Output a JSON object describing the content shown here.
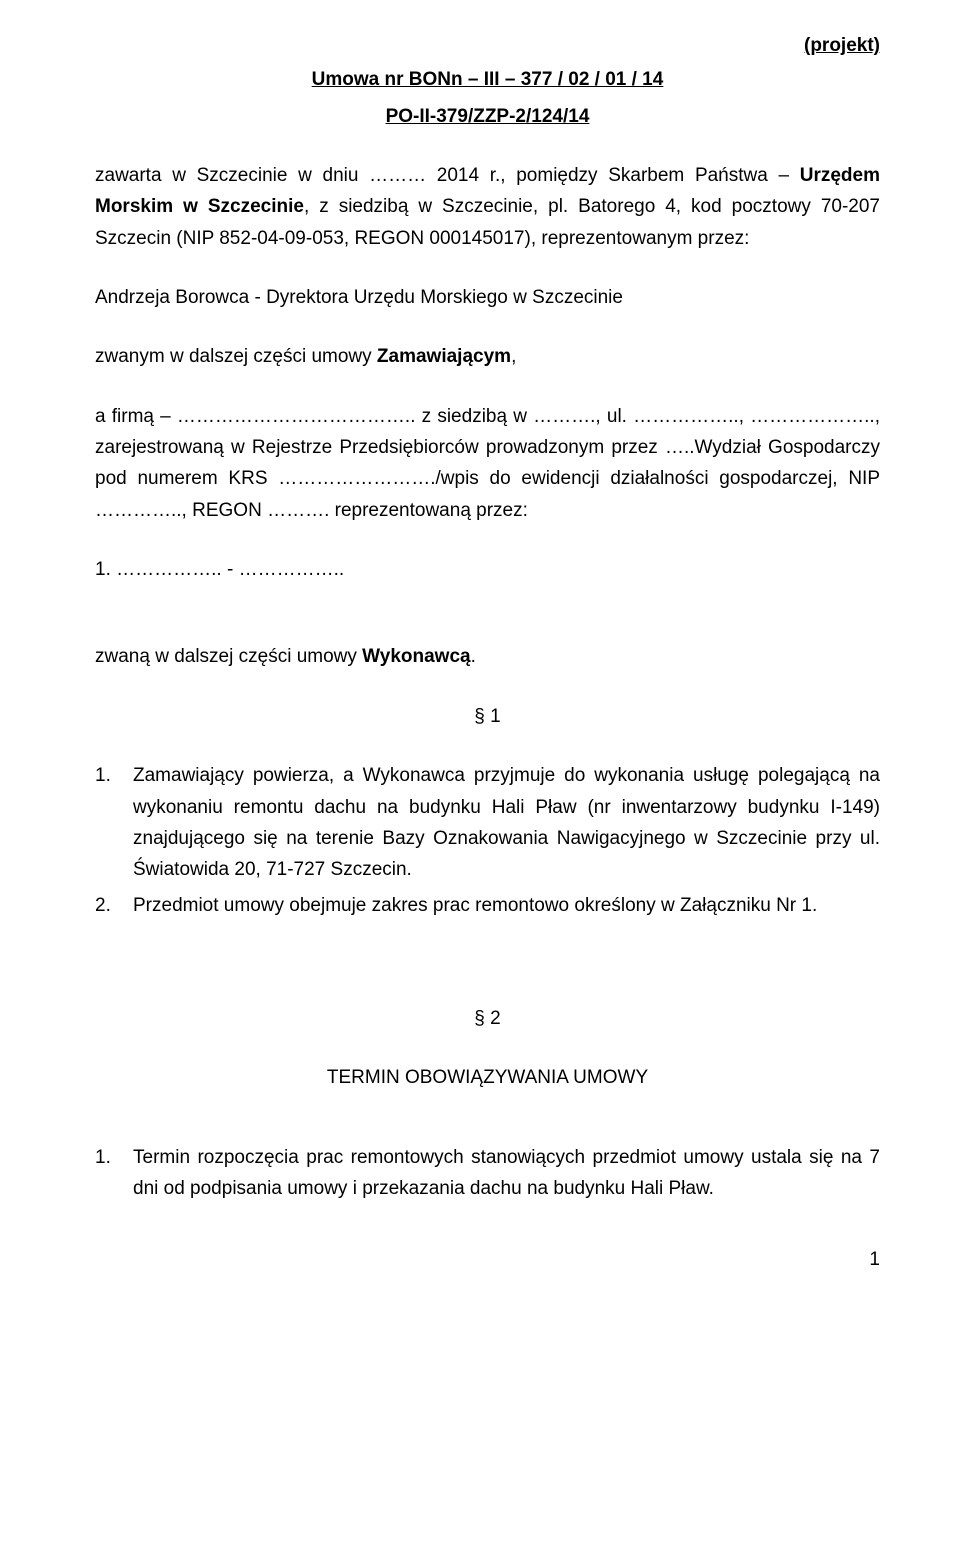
{
  "draft": "(projekt)",
  "title1": "Umowa  nr   BONn – III – 377 / 02 / 01 / 14",
  "title2": "PO-II-379/ZZP-2/124/14",
  "p1_part1": "zawarta w Szczecinie w dniu ……… 2014 r., pomiędzy Skarbem Państwa – ",
  "p1_bold1": "Urzędem Morskim w Szczecinie",
  "p1_part2": ", z siedzibą w Szczecinie, pl. Batorego 4, kod pocztowy 70-207 Szczecin   (NIP 852-04-09-053, REGON 000145017), reprezentowanym przez:",
  "p2": "Andrzeja Borowca - Dyrektora Urzędu Morskiego w Szczecinie",
  "p3_part1": "zwanym w dalszej części umowy ",
  "p3_bold": "Zamawiającym",
  "p3_part2": ",",
  "p4": "a firmą – ……………………………….. z siedzibą w ………., ul. …………….., ……………….., zarejestrowaną w Rejestrze Przedsiębiorców prowadzonym przez …..Wydział Gospodarczy pod numerem KRS ……………………./wpis do ewidencji działalności gospodarczej, NIP ………….., REGON ……….   reprezentowaną przez:",
  "p5": "1.     …………….. - ……………..",
  "p6_part1": "zwaną w dalszej części umowy ",
  "p6_bold": "Wykonawcą",
  "p6_part2": ".",
  "section1": "§ 1",
  "s1_item1_num": "1.",
  "s1_item1": "Zamawiający powierza, a Wykonawca przyjmuje do wykonania usługę polegającą na wykonaniu remontu dachu na budynku Hali Pław (nr inwentarzowy budynku I-149) znajdującego się na terenie Bazy Oznakowania Nawigacyjnego w Szczecinie przy ul. Światowida 20, 71-727 Szczecin.",
  "s1_item2_num": "2.",
  "s1_item2": "Przedmiot umowy obejmuje zakres prac remontowo określony w Załączniku Nr 1.",
  "section2": "§ 2",
  "section2_title": "TERMIN OBOWIĄZYWANIA UMOWY",
  "s2_item1_num": "1.",
  "s2_item1": "Termin rozpoczęcia prac remontowych stanowiących przedmiot umowy ustala się na 7 dni od podpisania umowy i przekazania dachu na budynku Hali Pław.",
  "pagenum": "1"
}
